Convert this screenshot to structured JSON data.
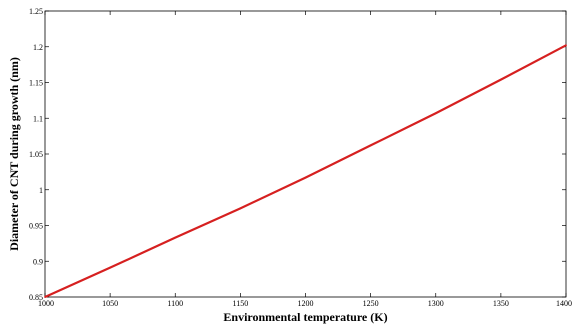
{
  "chart_data": {
    "type": "line",
    "title": "",
    "xlabel": "Environmental temperature (K)",
    "ylabel": "Diameter of CNT during growth (nm)",
    "xlim": [
      1000,
      1400
    ],
    "ylim": [
      0.85,
      1.25
    ],
    "xticks": [
      1000,
      1050,
      1100,
      1150,
      1200,
      1250,
      1300,
      1350,
      1400
    ],
    "yticks": [
      0.85,
      0.9,
      0.95,
      1,
      1.05,
      1.1,
      1.15,
      1.2,
      1.25
    ],
    "grid": false,
    "series": [
      {
        "color": "#d62020",
        "x": [
          1000,
          1050,
          1100,
          1150,
          1200,
          1250,
          1300,
          1350,
          1400
        ],
        "y": [
          0.85,
          0.891,
          0.933,
          0.974,
          1.017,
          1.062,
          1.107,
          1.154,
          1.202
        ]
      }
    ]
  }
}
